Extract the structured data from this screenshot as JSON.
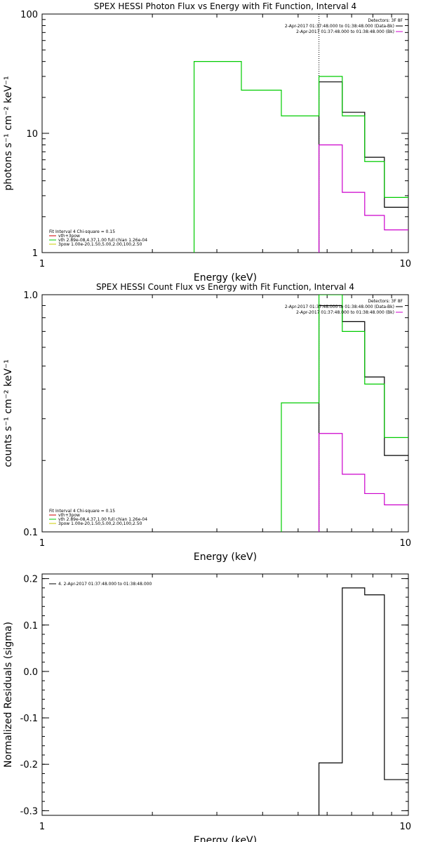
{
  "chart_data": [
    {
      "type": "line",
      "title": "SPEX HESSI Photon Flux vs Energy with Fit Function, Interval 4",
      "xlabel": "Energy (keV)",
      "ylabel": "photons s⁻¹ cm⁻² keV⁻¹",
      "xscale": "log",
      "yscale": "log",
      "xlim": [
        1,
        10
      ],
      "ylim": [
        1,
        100
      ],
      "xticks": [
        "1",
        "10"
      ],
      "yticks": [
        {
          "value": 1,
          "label": "1"
        },
        {
          "value": 10,
          "label": "10"
        },
        {
          "value": 100,
          "label": "100"
        }
      ],
      "marker_x": 5.7,
      "legend_right": {
        "header": "Detectors: 3F 8F",
        "entries": [
          {
            "text": "2-Apr-2017 01:37:48.000 to 01:38:48.000 (Data-Bk)",
            "color": "#000000"
          },
          {
            "text": "2-Apr-2017 01:37:48.000 to 01:38:48.000 (Bk)",
            "color": "#cc00cc"
          }
        ]
      },
      "legend_left": {
        "header": "Fit Interval 4   Chi-square = 0.15",
        "entries": [
          {
            "text": "vth+3pow",
            "color": "#cc0000"
          },
          {
            "text": "vth 2.89e-08,4.37,1.00  full chian 1.26e-04",
            "color": "#00cc00"
          },
          {
            "text": "3pow 1.00e-20,1.50,5.00,2.00,100,2.50",
            "color": "#cccc00"
          }
        ]
      },
      "series": [
        {
          "name": "2-Apr-2017 01:37:48.000 to 01:38:48.000 (Data-Bk)",
          "color": "#000000",
          "edges": [
            5.7,
            6.6,
            7.6,
            8.6,
            9.5,
            10.0
          ],
          "values": [
            27,
            15,
            6.3,
            2.4,
            2.4
          ]
        },
        {
          "name": "vth+3pow",
          "color": "#00cc00",
          "edges": [
            2.6,
            3.5,
            4.5,
            5.7,
            6.6,
            7.6,
            8.6,
            9.5,
            10.0
          ],
          "values": [
            40,
            23,
            14,
            30,
            14,
            5.8,
            2.9,
            2.9
          ]
        },
        {
          "name": "2-Apr-2017 01:37:48.000 to 01:38:48.000 (Bk)",
          "color": "#cc00cc",
          "edges": [
            5.7,
            6.6,
            7.6,
            8.6,
            9.5,
            10.0
          ],
          "values": [
            8,
            3.2,
            2.05,
            1.55,
            1.55
          ]
        }
      ]
    },
    {
      "type": "line",
      "title": "SPEX HESSI Count Flux vs Energy with Fit Function, Interval 4",
      "xlabel": "Energy (keV)",
      "ylabel": "counts s⁻¹ cm⁻² keV⁻¹",
      "xscale": "log",
      "yscale": "log",
      "xlim": [
        1,
        10
      ],
      "ylim": [
        0.1,
        1.0
      ],
      "xticks": [
        "1",
        "10"
      ],
      "yticks": [
        {
          "value": 0.1,
          "label": "0.1"
        },
        {
          "value": 1.0,
          "label": "1.0"
        }
      ],
      "marker_x": 5.7,
      "legend_right": {
        "header": "Detectors: 3F 8F",
        "entries": [
          {
            "text": "2-Apr-2017 01:37:48.000 to 01:38:48.000 (Data-Bk)",
            "color": "#000000"
          },
          {
            "text": "2-Apr-2017 01:37:48.000 to 01:38:48.000 (Bk)",
            "color": "#cc00cc"
          }
        ]
      },
      "legend_left": {
        "header": "Fit Interval 4   Chi-square = 0.15",
        "entries": [
          {
            "text": "vth+3pow",
            "color": "#cc0000"
          },
          {
            "text": "vth 2.89e-08,4.37,1.00  full chian 1.26e-04",
            "color": "#00cc00"
          },
          {
            "text": "3pow 1.00e-20,1.50,5.00,2.00,100,2.50",
            "color": "#cccc00"
          }
        ]
      },
      "series": [
        {
          "name": "2-Apr-2017 01:37:48.000 to 01:38:48.000 (Data-Bk)",
          "color": "#000000",
          "edges": [
            5.7,
            6.6,
            7.6,
            8.6,
            9.5,
            10.0
          ],
          "values": [
            0.9,
            0.77,
            0.45,
            0.21,
            0.21
          ]
        },
        {
          "name": "vth+3pow",
          "color": "#00cc00",
          "edges": [
            4.5,
            5.7,
            6.6,
            7.6,
            8.6,
            9.5,
            10.0
          ],
          "values": [
            0.35,
            1.0,
            0.7,
            0.42,
            0.25,
            0.25
          ]
        },
        {
          "name": "2-Apr-2017 01:37:48.000 to 01:38:48.000 (Bk)",
          "color": "#cc00cc",
          "edges": [
            5.7,
            6.6,
            7.6,
            8.6,
            9.5,
            10.0
          ],
          "values": [
            0.26,
            0.175,
            0.145,
            0.13,
            0.13
          ]
        }
      ]
    },
    {
      "type": "line",
      "title": "",
      "xlabel": "Energy (keV)",
      "ylabel": "Normalized Residuals (sigma)",
      "xscale": "log",
      "yscale": "linear",
      "xlim": [
        1,
        10
      ],
      "ylim": [
        -0.31,
        0.21
      ],
      "xticks": [
        "1",
        "10"
      ],
      "yticks": [
        {
          "value": 0.2,
          "label": "0.2"
        },
        {
          "value": 0.1,
          "label": "0.1"
        },
        {
          "value": 0.0,
          "label": "0.0"
        },
        {
          "value": -0.1,
          "label": "-0.1"
        },
        {
          "value": -0.2,
          "label": "-0.2"
        },
        {
          "value": -0.3,
          "label": "-0.3"
        }
      ],
      "legend_left": {
        "header": "",
        "entries": [
          {
            "text": "4.  2-Apr-2017 01:37:48.000 to 01:38:48.000",
            "color": "#000000"
          }
        ]
      },
      "series": [
        {
          "name": "4.  2-Apr-2017 01:37:48.000 to 01:38:48.000",
          "color": "#000000",
          "edges": [
            5.7,
            6.6,
            7.6,
            8.6,
            10.0
          ],
          "values": [
            -0.197,
            0.18,
            0.165,
            -0.233
          ]
        }
      ]
    }
  ]
}
